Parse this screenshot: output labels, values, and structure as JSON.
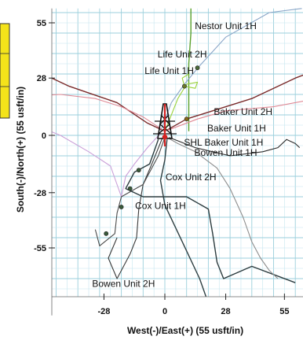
{
  "chart_data": {
    "type": "line",
    "xlabel": "West(-)/East(+) (55 usft/in)",
    "ylabel": "South(-)/North(+) (55 usft/in)",
    "xlim": [
      -65,
      65
    ],
    "ylim": [
      -88,
      62
    ],
    "x_ticks": [
      -28,
      0,
      28,
      55
    ],
    "y_ticks": [
      55,
      28,
      0,
      -28,
      -55
    ],
    "grid": true,
    "colors": {
      "grid_minor": "#c6e6ef",
      "grid_major": "#9bcfdc",
      "nestor": "#5aa02c",
      "life2": "#8aa6c8",
      "life1": "#9bd23a",
      "baker2": "#7a2a2a",
      "baker1": "#e08a96",
      "bowen1": "#caa0d8",
      "bowen2": "#2e3f42",
      "cox2": "#3a3a3a",
      "cox1": "#4a4a4a",
      "shl": "#d42020",
      "legend_box": "#f4e31a"
    },
    "series": [
      {
        "name": "Nestor Unit 1H",
        "points": [
          [
            11,
            2
          ],
          [
            11,
            20
          ],
          [
            11,
            35
          ],
          [
            12,
            50
          ],
          [
            12,
            62
          ]
        ]
      },
      {
        "name": "Life Unit 2H",
        "points": [
          [
            -2,
            2
          ],
          [
            3,
            16
          ],
          [
            9,
            25
          ],
          [
            16,
            34
          ],
          [
            28,
            48
          ],
          [
            48,
            60
          ],
          [
            63,
            62
          ]
        ]
      },
      {
        "name": "Life Unit 1H",
        "points": [
          [
            0,
            2
          ],
          [
            6,
            18
          ],
          [
            10,
            25
          ],
          [
            15,
            26
          ],
          [
            14,
            23
          ],
          [
            9,
            24
          ],
          [
            8,
            28
          ],
          [
            11,
            30
          ]
        ]
      },
      {
        "name": "Baker Unit 2H",
        "points": [
          [
            -65,
            24
          ],
          [
            -52,
            28
          ],
          [
            -44,
            24
          ],
          [
            -22,
            16
          ],
          [
            -8,
            6
          ],
          [
            0,
            2
          ],
          [
            10,
            8
          ],
          [
            22,
            12
          ],
          [
            40,
            18
          ],
          [
            60,
            28
          ],
          [
            65,
            30
          ]
        ]
      },
      {
        "name": "Baker Unit 1H",
        "points": [
          [
            -65,
            19
          ],
          [
            -48,
            20
          ],
          [
            -32,
            18
          ],
          [
            -20,
            14
          ],
          [
            -10,
            9
          ],
          [
            0,
            2
          ],
          [
            15,
            8
          ],
          [
            28,
            12
          ],
          [
            50,
            14
          ],
          [
            65,
            17
          ]
        ]
      },
      {
        "name": "SHL Baker Unit 1H",
        "points": [
          [
            0,
            0
          ]
        ]
      },
      {
        "name": "Bowen Unit 1H",
        "points": [
          [
            -2,
            1
          ],
          [
            -8,
            -6
          ],
          [
            -14,
            -14
          ],
          [
            -18,
            -20
          ],
          [
            -20,
            -30
          ],
          [
            -25,
            -15
          ],
          [
            -35,
            -8
          ],
          [
            -48,
            0
          ],
          [
            -55,
            3
          ],
          [
            -65,
            5
          ]
        ]
      },
      {
        "name": "Bowen Unit 2H",
        "points": [
          [
            1,
            -2
          ],
          [
            0,
            -12
          ],
          [
            -2,
            -22
          ],
          [
            0,
            -34
          ],
          [
            8,
            -52
          ],
          [
            16,
            -70
          ],
          [
            22,
            -88
          ]
        ]
      },
      {
        "name": "Cox Unit 2H",
        "points": [
          [
            -1,
            -1
          ],
          [
            -6,
            -14
          ],
          [
            -10,
            -24
          ],
          [
            -12,
            -36
          ],
          [
            -13,
            -50
          ],
          [
            -16,
            -58
          ],
          [
            -22,
            -70
          ],
          [
            -26,
            -60
          ],
          [
            -22,
            -50
          ]
        ]
      },
      {
        "name": "Cox Unit 1H",
        "points": [
          [
            0,
            -1
          ],
          [
            -3,
            -10
          ],
          [
            -10,
            -24
          ],
          [
            -20,
            -30
          ],
          [
            -22,
            -38
          ],
          [
            -23,
            -48
          ],
          [
            -30,
            -54
          ],
          [
            -32,
            -46
          ]
        ]
      },
      {
        "name": "",
        "points": [
          [
            -3,
            -2
          ],
          [
            -7,
            -14
          ],
          [
            -14,
            -18
          ],
          [
            -18,
            -26
          ],
          [
            -10,
            -30
          ],
          [
            10,
            -30
          ],
          [
            20,
            -36
          ],
          [
            22,
            -48
          ],
          [
            24,
            -62
          ],
          [
            27,
            -70
          ],
          [
            40,
            -64
          ],
          [
            60,
            -72
          ]
        ]
      },
      {
        "name": "",
        "points": [
          [
            2,
            -1
          ],
          [
            14,
            -6
          ],
          [
            30,
            -10
          ],
          [
            45,
            -8
          ],
          [
            52,
            -6
          ],
          [
            56,
            -2
          ],
          [
            60,
            -4
          ],
          [
            62,
            -6
          ]
        ]
      },
      {
        "name": "",
        "points": [
          [
            1,
            -1
          ],
          [
            6,
            -4
          ],
          [
            14,
            -8
          ],
          [
            24,
            -16
          ],
          [
            30,
            -26
          ],
          [
            36,
            -40
          ],
          [
            40,
            -52
          ],
          [
            44,
            -60
          ],
          [
            48,
            -66
          ],
          [
            52,
            -70
          ]
        ]
      }
    ],
    "markers": [
      {
        "series": "Nestor Unit 1H",
        "x": 15,
        "y": 33
      },
      {
        "series": "Life Unit 1H",
        "x": 9,
        "y": 24
      },
      {
        "series": "Baker Unit 2H",
        "x": 10,
        "y": 8
      },
      {
        "series": "Cox Unit 2H",
        "x": -12,
        "y": -17
      },
      {
        "series": "Cox Unit 2H",
        "x": -16,
        "y": -26
      },
      {
        "series": "Cox Unit 1H",
        "x": -20,
        "y": -35
      },
      {
        "series": "Cox Unit 1H",
        "x": -27,
        "y": -48
      }
    ],
    "labels": [
      {
        "text": "Nestor Unit 1H",
        "x": 28,
        "y": 52
      },
      {
        "text": "Life Unit 2H",
        "x": 8,
        "y": 38
      },
      {
        "text": "Life Unit 1H",
        "x": 2,
        "y": 30
      },
      {
        "text": "Baker Unit 2H",
        "x": 36,
        "y": 10
      },
      {
        "text": "Baker Unit 1H",
        "x": 33,
        "y": 2
      },
      {
        "text": "SHL Baker Unit 1H",
        "x": 27,
        "y": -5
      },
      {
        "text": "Bowen Unit 1H",
        "x": 28,
        "y": -10
      },
      {
        "text": "Cox Unit 2H",
        "x": 12,
        "y": -22
      },
      {
        "text": "Cox Unit 1H",
        "x": -2,
        "y": -36
      },
      {
        "text": "Bowen Unit 2H",
        "x": -19,
        "y": -74
      }
    ]
  }
}
